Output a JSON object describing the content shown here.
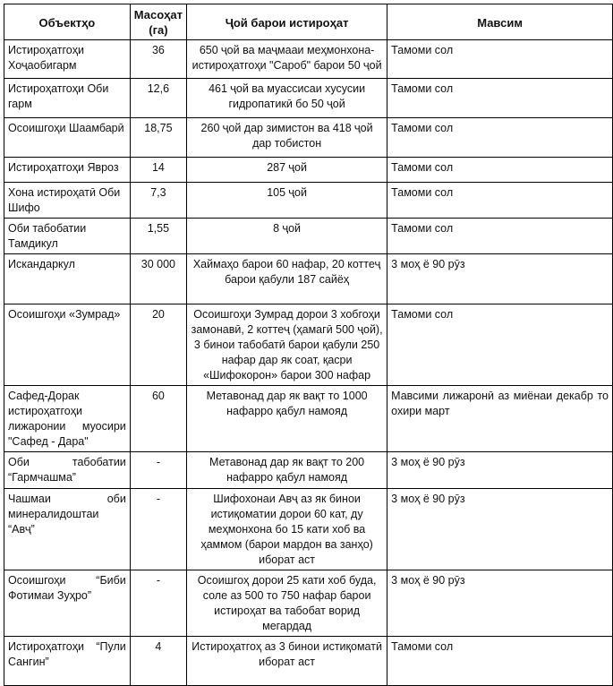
{
  "table": {
    "headers": [
      "Объектҳо",
      "Масоҳат (га)",
      "Ҷой барои истироҳат",
      "Мавсим"
    ],
    "rows": [
      {
        "object": "Истироҳатгоҳи Хоҷаобигарм",
        "area": "36",
        "capacity": "650 ҷой ва маҷмааи меҳмонхона-истироҳатгоҳи \"Сароб\" барои 50 ҷой",
        "season": "Тамоми сол"
      },
      {
        "object": "Истироҳатгоҳи Оби гарм",
        "area": "12,6",
        "capacity": "461 ҷой ва муассисаи хусусии гидропатикӣ бо 50 ҷой",
        "season": "Тамоми сол"
      },
      {
        "object": "Осоишгоҳи Шаамбарӣ",
        "area": "18,75",
        "capacity": "260 ҷой дар зимистон ва 418 ҷой дар тобистон",
        "season": "Тамоми сол"
      },
      {
        "object": "Истироҳатгоҳи Явроз",
        "area": "14",
        "capacity": "287 ҷой",
        "season": "Тамоми сол"
      },
      {
        "object": "Хона истироҳатӣ Оби Шифо",
        "area": "7,3",
        "capacity": "105 ҷой",
        "season": "Тамоми сол"
      },
      {
        "object": "Оби табобатии Тамдикул",
        "area": "1,55",
        "capacity": "8 ҷой",
        "season": "Тамоми сол"
      },
      {
        "object": "Искандаркул",
        "area": "30 000",
        "capacity": "Хаймаҳо барои 60 нафар, 20 коттеҷ барои қабули 187 сайёҳ",
        "season": "3 моҳ ё 90 рӯз"
      },
      {
        "object": "Осоишгоҳи «Зумрад»",
        "area": "20",
        "capacity": "Осоишгоҳи Зумрад дорои 3 хобгоҳи замонавӣ, 2 коттеҷ (ҳамагӣ 500 ҷой), 3 бинои табобатӣ барои қабули 250 нафар дар як соат, қасри «Шифокорон» барои 300 нафар",
        "season": "Тамоми сол"
      },
      {
        "object": "Сафед-Дорак истироҳатгоҳи лижаронии муосири \"Сафед - Дара\"",
        "area": "60",
        "capacity": "Метавонад дар як вақт то 1000 нафарро қабул намояд",
        "season": "Мавсими лижаронӣ аз миёнаи декабр то охири март"
      },
      {
        "object": "Оби табобатии “Гармчашма”",
        "area": "-",
        "capacity": "Метавонад дар як вақт то 200 нафарро қабул намояд",
        "season": "3 моҳ ё 90 рӯз"
      },
      {
        "object": "Чашмаи оби минералидоштаи “Авҷ”",
        "area": "-",
        "capacity": "Шифохонаи Авҷ аз як бинои истиқоматии дорои 60 кат, ду меҳмонхона бо 15 кати хоб ва ҳаммом (барои мардон ва занҳо) иборат аст",
        "season": "3 моҳ ё 90 рӯз"
      },
      {
        "object": "Осоишгоҳи “Биби Фотимаи Зуҳро”",
        "area": "-",
        "capacity": "Осоишгоҳ дорои 25 кати хоб буда, соле аз 500 то 750 нафар барои истироҳат ва табобат ворид мегардад",
        "season": "3 моҳ ё 90 рӯз"
      },
      {
        "object": "Истироҳатгоҳи “Пули Сангин”",
        "area": "4",
        "capacity": "Истироҳатгоҳ аз 3 бинои истиқоматӣ иборат аст",
        "season": "Тамоми сол"
      }
    ]
  }
}
